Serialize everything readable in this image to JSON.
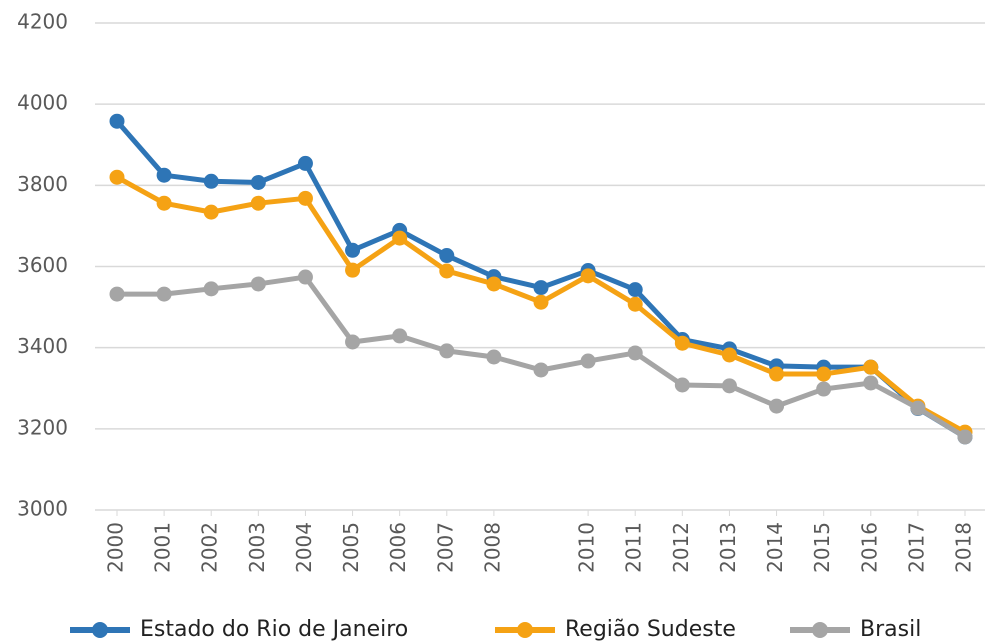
{
  "chart_data": {
    "type": "line",
    "categories": [
      "2000",
      "2001",
      "2002",
      "2003",
      "2004",
      "2005",
      "2006",
      "2007",
      "2008",
      null,
      "2010",
      "2011",
      "2012",
      "2013",
      "2014",
      "2015",
      "2016",
      "2017",
      "2018"
    ],
    "series": [
      {
        "name": "Estado do Rio de Janeiro",
        "color": "#2e75b6",
        "values": [
          3958,
          3825,
          3810,
          3807,
          3854,
          3640,
          3689,
          3627,
          3575,
          3548,
          3590,
          3543,
          3420,
          3397,
          3355,
          3352,
          3352,
          3250,
          3180
        ]
      },
      {
        "name": "Região Sudeste",
        "color": "#f5a214",
        "values": [
          3820,
          3756,
          3734,
          3756,
          3768,
          3591,
          3670,
          3589,
          3557,
          3512,
          3577,
          3507,
          3411,
          3382,
          3335,
          3335,
          3352,
          3256,
          3192
        ]
      },
      {
        "name": "Brasil",
        "color": "#a5a5a5",
        "values": [
          3532,
          3532,
          3545,
          3557,
          3574,
          3414,
          3429,
          3392,
          3377,
          3345,
          3367,
          3387,
          3308,
          3306,
          3256,
          3298,
          3313,
          3251,
          3180
        ]
      }
    ],
    "ylim": [
      3000,
      4200
    ],
    "yticks": [
      3000,
      3200,
      3400,
      3600,
      3800,
      4000,
      4200
    ],
    "grid": true,
    "legend": "bottom"
  }
}
